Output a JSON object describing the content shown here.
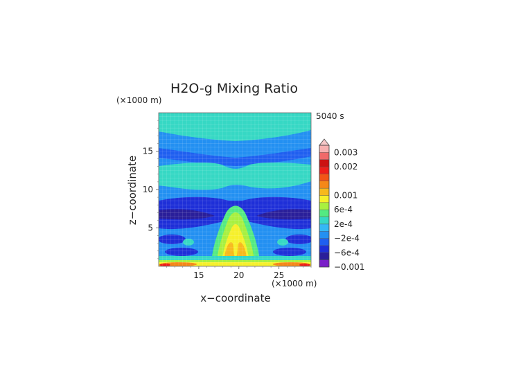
{
  "chart_data": {
    "type": "heatmap",
    "title": "H2O-g Mixing Ratio",
    "time_label": "5040 s",
    "xlabel": "x−coordinate",
    "ylabel": "z−coordinate",
    "x_unit": "(×1000 m)",
    "y_unit": "(×1000 m)",
    "xlim": [
      10,
      29
    ],
    "ylim": [
      0,
      20
    ],
    "x_ticks": [
      "15",
      "20",
      "25"
    ],
    "y_ticks": [
      "5",
      "10",
      "15"
    ],
    "grid": true,
    "colorbar": {
      "position": "right",
      "tick_labels": [
        "0.003",
        "0.002",
        "0.001",
        "6e-4",
        "2e-4",
        "−2e-4",
        "−6e-4",
        "−0.001"
      ],
      "levels": [
        -0.001,
        -0.0008,
        -0.0006,
        -0.0004,
        -0.0002,
        0,
        0.0002,
        0.0004,
        0.0006,
        0.0008,
        0.001,
        0.00125,
        0.0015,
        0.00175,
        0.002,
        0.0025,
        0.003
      ],
      "colors": [
        "#7a1fc8",
        "#2a1f9a",
        "#1e2fd8",
        "#1f5ff0",
        "#2390f2",
        "#35b8f5",
        "#36d8c4",
        "#53ea82",
        "#a8f040",
        "#f6f02a",
        "#f7b91c",
        "#f58818",
        "#f25516",
        "#ee1e1a",
        "#cc1212",
        "#f06a6a",
        "#f6b0b0"
      ]
    },
    "field_description": [
      {
        "region": "z 16-20 km",
        "value": -0.0001
      },
      {
        "region": "z 14.5-16.5 km",
        "value": -0.00035
      },
      {
        "region": "z 10.5-14 km",
        "value": -0.0001
      },
      {
        "region": "z 5.5-8.5 km",
        "value": -0.0006
      },
      {
        "region": "center plume x 18-22 km, z 0-6 km",
        "value": 0.0006
      },
      {
        "region": "surface layer z 0-0.5 km",
        "value": 0.0012
      }
    ]
  }
}
